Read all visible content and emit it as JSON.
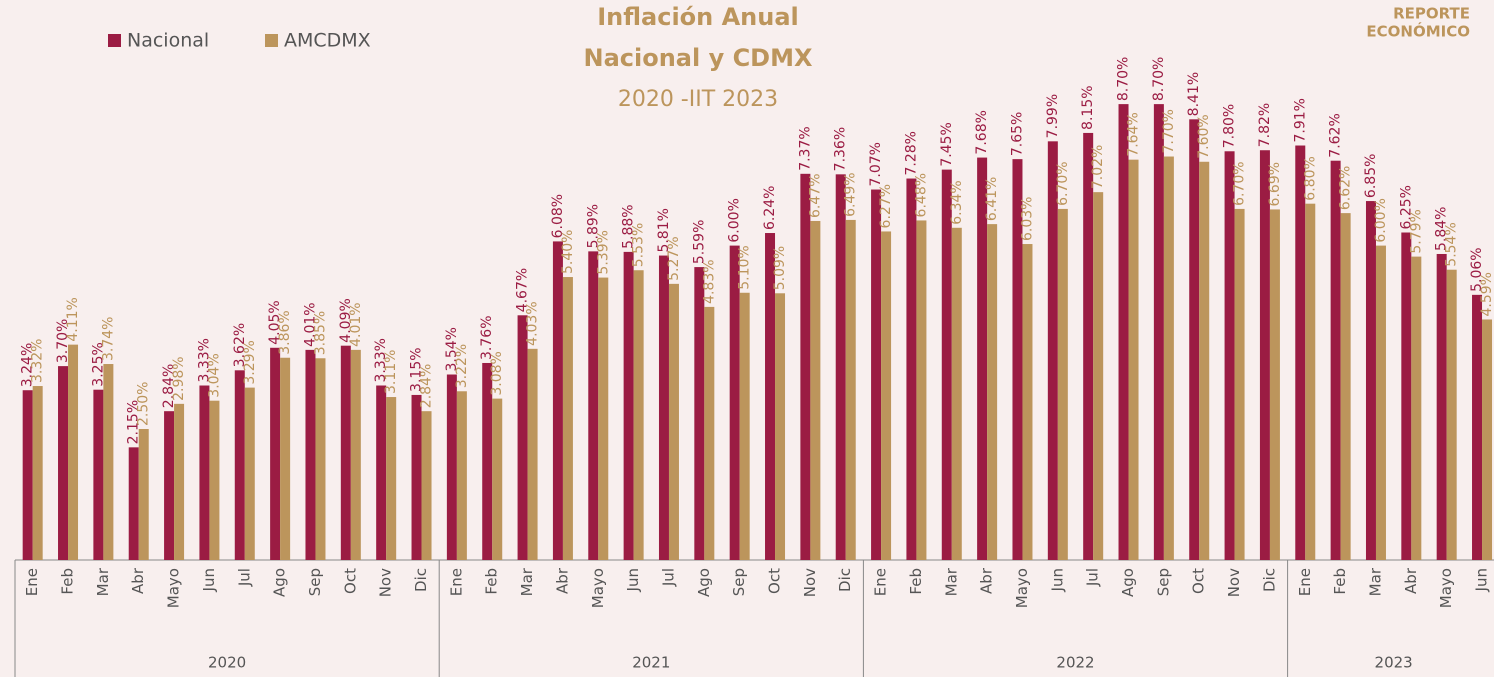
{
  "chart_data": {
    "type": "bar",
    "title": "Inflación Anual",
    "title_line2": "Nacional y CDMX",
    "subtitle": "2020 -IIT 2023",
    "logo": [
      "REPORTE",
      "ECONÓMICO"
    ],
    "groups": [
      {
        "label": "2020",
        "categories": [
          "Ene",
          "Feb",
          "Mar",
          "Abr",
          "Mayo",
          "Jun",
          "Jul",
          "Ago",
          "Sep",
          "Oct",
          "Nov",
          "Dic"
        ]
      },
      {
        "label": "2021",
        "categories": [
          "Ene",
          "Feb",
          "Mar",
          "Abr",
          "Mayo",
          "Jun",
          "Jul",
          "Ago",
          "Sep",
          "Oct",
          "Nov",
          "Dic"
        ]
      },
      {
        "label": "2022",
        "categories": [
          "Ene",
          "Feb",
          "Mar",
          "Abr",
          "Mayo",
          "Jun",
          "Jul",
          "Ago",
          "Sep",
          "Oct",
          "Nov",
          "Dic"
        ]
      },
      {
        "label": "2023",
        "categories": [
          "Ene",
          "Feb",
          "Mar",
          "Abr",
          "Mayo",
          "Jun"
        ]
      }
    ],
    "series": [
      {
        "name": "Nacional",
        "color": "#9b1c43",
        "values": [
          3.24,
          3.7,
          3.25,
          2.15,
          2.84,
          3.33,
          3.62,
          4.05,
          4.01,
          4.09,
          3.33,
          3.15,
          3.54,
          3.76,
          4.67,
          6.08,
          5.89,
          5.88,
          5.81,
          5.59,
          6.0,
          6.24,
          7.37,
          7.36,
          7.07,
          7.28,
          7.45,
          7.68,
          7.65,
          7.99,
          8.15,
          8.7,
          8.7,
          8.41,
          7.8,
          7.82,
          7.91,
          7.62,
          6.85,
          6.25,
          5.84,
          5.06
        ],
        "value_labels": [
          "3.24%",
          "3.70%",
          "3.25%",
          "2.15%",
          "2.84%",
          "3.33%",
          "3.62%",
          "4.05%",
          "4.01%",
          "4.09%",
          "3.33%",
          "3.15%",
          "3.54%",
          "3.76%",
          "4.67%",
          "6.08%",
          "5.89%",
          "5.88%",
          "5.81%",
          "5.59%",
          "6.00%",
          "6.24%",
          "7.37%",
          "7.36%",
          "7.07%",
          "7.28%",
          "7.45%",
          "7.68%",
          "7.65%",
          "7.99%",
          "8.15%",
          "8.70%",
          "8.70%",
          "8.41%",
          "7.80%",
          "7.82%",
          "7.91%",
          "7.62%",
          "6.85%",
          "6.25%",
          "5.84%",
          "5.06%"
        ]
      },
      {
        "name": "AMCDMX",
        "color": "#bc955c",
        "values": [
          3.32,
          4.11,
          3.74,
          2.5,
          2.98,
          3.04,
          3.29,
          3.86,
          3.85,
          4.01,
          3.11,
          2.84,
          3.22,
          3.08,
          4.03,
          5.4,
          5.39,
          5.53,
          5.27,
          4.83,
          5.1,
          5.09,
          6.47,
          6.49,
          6.27,
          6.48,
          6.34,
          6.41,
          6.03,
          6.7,
          7.02,
          7.64,
          7.7,
          7.6,
          6.7,
          6.69,
          6.8,
          6.62,
          6.0,
          5.79,
          5.54,
          4.59
        ],
        "value_labels": [
          "3.32%",
          "4.11%",
          "3.74%",
          "2.50%",
          "2.98%",
          "3.04%",
          "3.29%",
          "3.86%",
          "3.85%",
          "4.01%",
          "3.11%",
          "2.84%",
          "3.22%",
          "3.08%",
          "4.03%",
          "5.40%",
          "5.39%",
          "5.53%",
          "5.27%",
          "4.83%",
          "5.10%",
          "5.09%",
          "6.47%",
          "6.49%",
          "6.27%",
          "6.48%",
          "6.34%",
          "6.41%",
          "6.03%",
          "6.70%",
          "7.02%",
          "7.64%",
          "7.70%",
          "7.60%",
          "6.70%",
          "6.69%",
          "6.80%",
          "6.62%",
          "6.00%",
          "5.79%",
          "5.54%",
          "4.59%"
        ]
      }
    ],
    "legend": "top-left"
  }
}
